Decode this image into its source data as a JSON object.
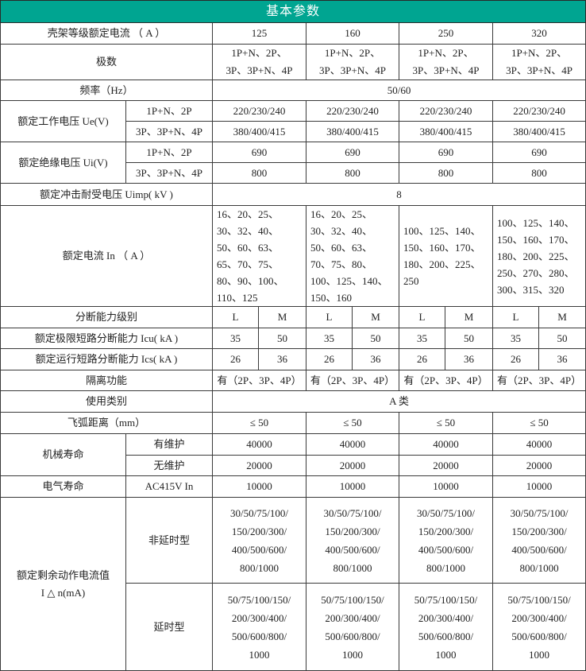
{
  "title": "基本参数",
  "frame_current": {
    "label": "壳架等级额定电流 （ A ）",
    "values": [
      "125",
      "160",
      "250",
      "320"
    ]
  },
  "poles": {
    "label": "极数",
    "values": [
      "1P+N、2P、\n3P、3P+N、4P",
      "1P+N、2P、\n3P、3P+N、4P",
      "1P+N、2P、\n3P、3P+N、4P",
      "1P+N、2P、\n3P、3P+N、4P"
    ]
  },
  "frequency": {
    "label": "频率（Hz）",
    "value": "50/60"
  },
  "ue": {
    "label": "额定工作电压 Ue(V)",
    "sub1": "1P+N、2P",
    "sub2": "3P、3P+N、4P",
    "values1": [
      "220/230/240",
      "220/230/240",
      "220/230/240",
      "220/230/240"
    ],
    "values2": [
      "380/400/415",
      "380/400/415",
      "380/400/415",
      "380/400/415"
    ]
  },
  "ui": {
    "label": "额定绝缘电压 Ui(V)",
    "sub1": "1P+N、2P",
    "sub2": "3P、3P+N、4P",
    "values1": [
      "690",
      "690",
      "690",
      "690"
    ],
    "values2": [
      "800",
      "800",
      "800",
      "800"
    ]
  },
  "uimp": {
    "label": "额定冲击耐受电压 Uimp( kV )",
    "value": "8"
  },
  "in": {
    "label": "额定电流 In （ A ）",
    "values": [
      "16、20、25、\n30、32、40、\n50、60、63、\n65、70、75、\n80、90、100、\n110、125",
      "16、20、25、\n30、32、40、\n50、60、63、\n70、75、80、\n100、125、140、\n150、160",
      "100、125、140、\n150、160、170、\n180、200、225、\n250",
      "100、125、140、\n150、160、170、\n180、200、225、\n250、270、280、\n300、315、320"
    ]
  },
  "breaking_level": {
    "label": "分断能力级别",
    "values": [
      "L",
      "M",
      "L",
      "M",
      "L",
      "M",
      "L",
      "M"
    ]
  },
  "icu": {
    "label": "额定极限短路分断能力 Icu( kA )",
    "values": [
      "35",
      "50",
      "35",
      "50",
      "35",
      "50",
      "35",
      "50"
    ]
  },
  "ics": {
    "label": "额定运行短路分断能力 Ics( kA )",
    "values": [
      "26",
      "36",
      "26",
      "36",
      "26",
      "36",
      "26",
      "36"
    ]
  },
  "isolation": {
    "label": "隔离功能",
    "values": [
      "有（2P、3P、4P）",
      "有（2P、3P、4P）",
      "有（2P、3P、4P）",
      "有（2P、3P、4P）"
    ]
  },
  "category": {
    "label": "使用类别",
    "value": "A 类"
  },
  "arc": {
    "label": "飞弧距离（mm）",
    "values": [
      "≤ 50",
      "≤ 50",
      "≤ 50",
      "≤ 50"
    ]
  },
  "mech": {
    "label": "机械寿命",
    "sub1": "有维护",
    "sub2": "无维护",
    "values1": [
      "40000",
      "40000",
      "40000",
      "40000"
    ],
    "values2": [
      "20000",
      "20000",
      "20000",
      "20000"
    ]
  },
  "elec": {
    "label": "电气寿命",
    "sub": "AC415V In",
    "values": [
      "10000",
      "10000",
      "10000",
      "10000"
    ]
  },
  "residual": {
    "label": "额定剩余动作电流值\nI △ n(mA)",
    "sub1": "非延时型",
    "sub2": "延时型",
    "values1": [
      "30/50/75/100/\n150/200/300/\n400/500/600/\n800/1000",
      "30/50/75/100/\n150/200/300/\n400/500/600/\n800/1000",
      "30/50/75/100/\n150/200/300/\n400/500/600/\n800/1000",
      "30/50/75/100/\n150/200/300/\n400/500/600/\n800/1000"
    ],
    "values2": [
      "50/75/100/150/\n200/300/400/\n500/600/800/\n1000",
      "50/75/100/150/\n200/300/400/\n500/600/800/\n1000",
      "50/75/100/150/\n200/300/400/\n500/600/800/\n1000",
      "50/75/100/150/\n200/300/400/\n500/600/800/\n1000"
    ]
  },
  "colors": {
    "header_bg": "#00a591",
    "header_text": "#ffffff",
    "border": "#3a3a3a"
  }
}
